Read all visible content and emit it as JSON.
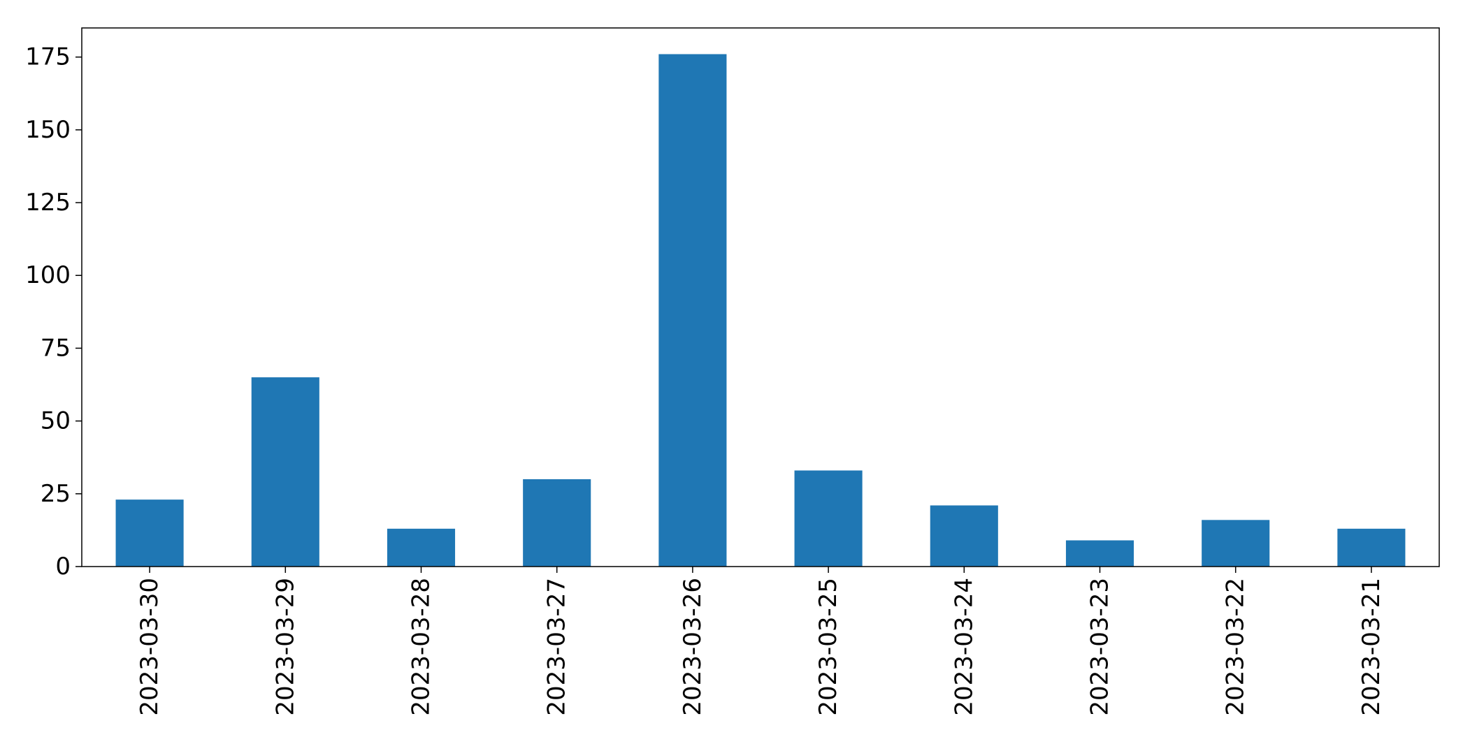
{
  "chart_data": {
    "type": "bar",
    "title": "",
    "xlabel": "",
    "ylabel": "",
    "categories": [
      "2023-03-30",
      "2023-03-29",
      "2023-03-28",
      "2023-03-27",
      "2023-03-26",
      "2023-03-25",
      "2023-03-24",
      "2023-03-23",
      "2023-03-22",
      "2023-03-21"
    ],
    "values": [
      23,
      65,
      13,
      30,
      176,
      33,
      21,
      9,
      16,
      13
    ],
    "ylim": [
      0,
      185
    ],
    "yticks": [
      0,
      25,
      50,
      75,
      100,
      125,
      150,
      175
    ],
    "grid": false,
    "legend": "none",
    "colors": {
      "bar": "#1f77b4",
      "axis": "#000000",
      "background": "#ffffff"
    }
  }
}
